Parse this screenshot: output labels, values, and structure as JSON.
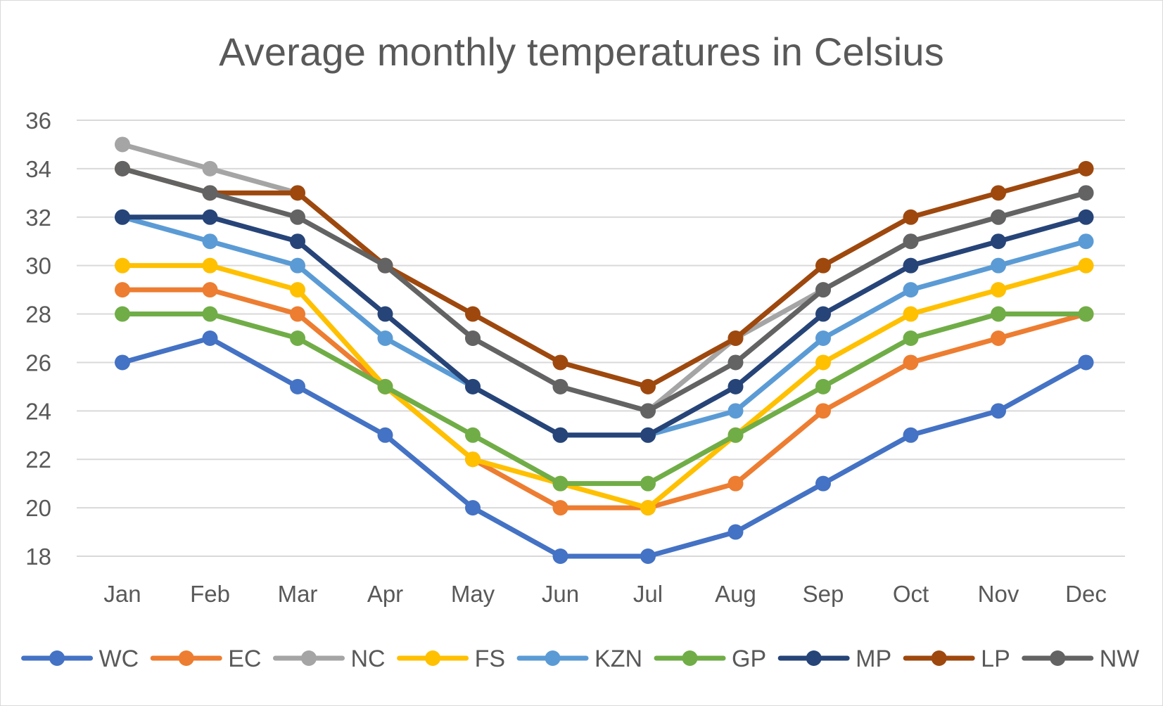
{
  "chart_data": {
    "type": "line",
    "title": "Average monthly temperatures in Celsius",
    "xlabel": "",
    "ylabel": "",
    "categories": [
      "Jan",
      "Feb",
      "Mar",
      "Apr",
      "May",
      "Jun",
      "Jul",
      "Aug",
      "Sep",
      "Oct",
      "Nov",
      "Dec"
    ],
    "ylim": [
      18,
      36
    ],
    "yticks": [
      18,
      20,
      22,
      24,
      26,
      28,
      30,
      32,
      34,
      36
    ],
    "grid": true,
    "legend_position": "bottom",
    "series": [
      {
        "name": "WC",
        "color": "#4472C4",
        "values": [
          26,
          27,
          25,
          23,
          20,
          18,
          18,
          19,
          21,
          23,
          24,
          26
        ]
      },
      {
        "name": "EC",
        "color": "#ED7D31",
        "values": [
          29,
          29,
          28,
          25,
          22,
          20,
          20,
          21,
          24,
          26,
          27,
          28
        ]
      },
      {
        "name": "NC",
        "color": "#A5A5A5",
        "values": [
          35,
          34,
          33,
          30,
          27,
          25,
          24,
          27,
          29,
          31,
          32,
          33
        ]
      },
      {
        "name": "FS",
        "color": "#FFC000",
        "values": [
          30,
          30,
          29,
          25,
          22,
          21,
          20,
          23,
          26,
          28,
          29,
          30
        ]
      },
      {
        "name": "KZN",
        "color": "#5B9BD5",
        "values": [
          32,
          31,
          30,
          27,
          25,
          23,
          23,
          24,
          27,
          29,
          30,
          31
        ]
      },
      {
        "name": "GP",
        "color": "#70AD47",
        "values": [
          28,
          28,
          27,
          25,
          23,
          21,
          21,
          23,
          25,
          27,
          28,
          28
        ]
      },
      {
        "name": "MP",
        "color": "#264478",
        "values": [
          32,
          32,
          31,
          28,
          25,
          23,
          23,
          25,
          28,
          30,
          31,
          32
        ]
      },
      {
        "name": "LP",
        "color": "#9E480E",
        "values": [
          34,
          33,
          33,
          30,
          28,
          26,
          25,
          27,
          30,
          32,
          33,
          34
        ]
      },
      {
        "name": "NW",
        "color": "#636363",
        "values": [
          34,
          33,
          32,
          30,
          27,
          25,
          24,
          26,
          29,
          31,
          32,
          33
        ]
      }
    ]
  }
}
